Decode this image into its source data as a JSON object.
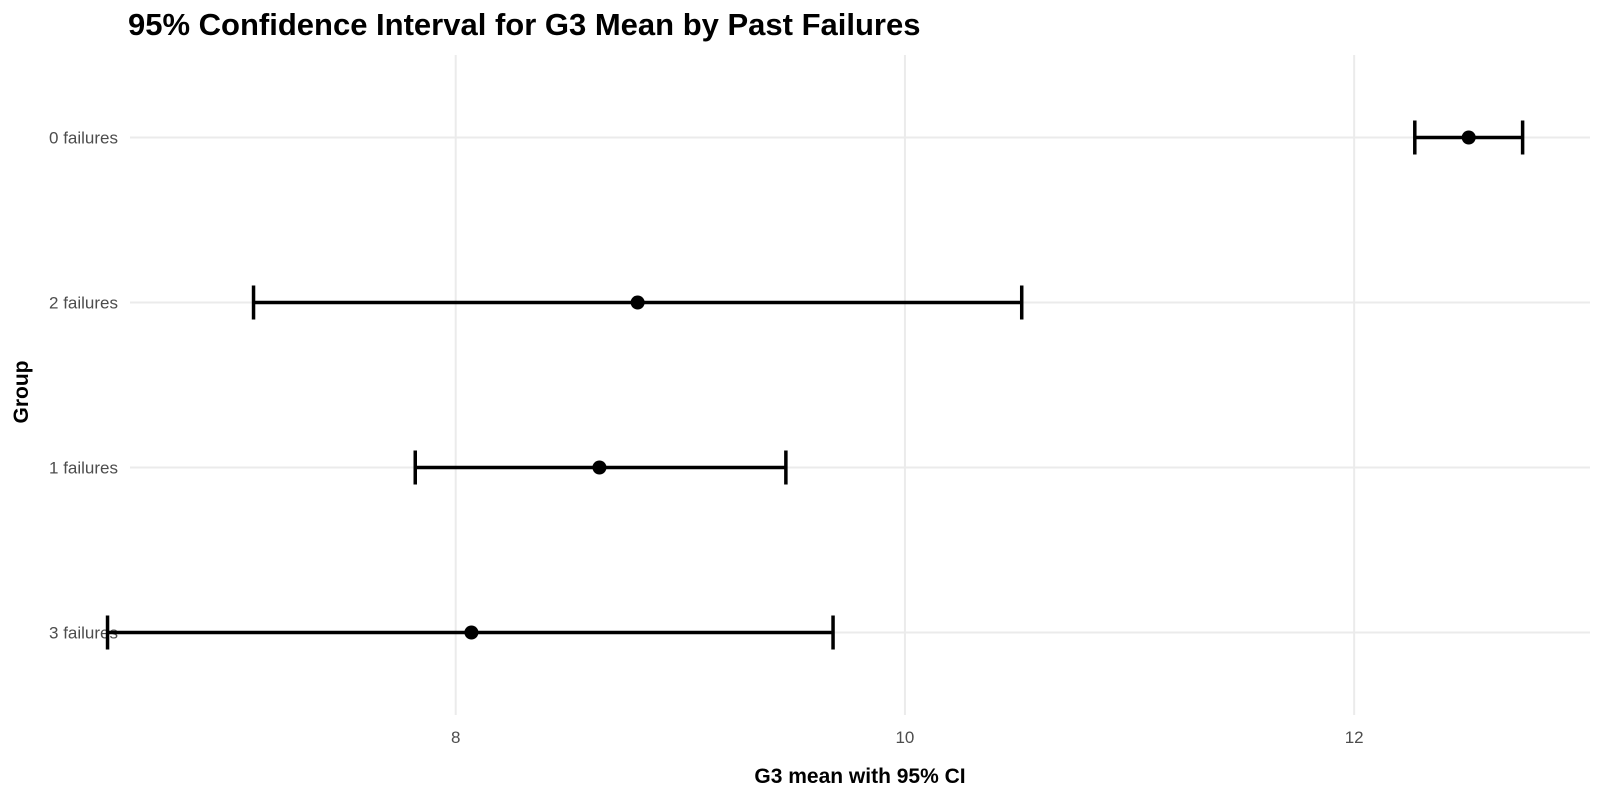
{
  "chart_data": {
    "type": "errorbar",
    "title": "95% Confidence Interval for G3 Mean by Past Failures",
    "xlabel": "G3 mean with 95% CI",
    "ylabel": "Group",
    "xlim": [
      6.55,
      13.05
    ],
    "x_ticks": [
      8,
      10,
      12
    ],
    "x_tick_labels": [
      "8",
      "10",
      "12"
    ],
    "categories": [
      "0 failures",
      "2 failures",
      "1 failures",
      "3 failures"
    ],
    "series": [
      {
        "mean": [
          12.51,
          8.81,
          8.64,
          8.07
        ],
        "lower": [
          12.27,
          7.1,
          7.82,
          6.45
        ],
        "upper": [
          12.75,
          10.52,
          9.47,
          9.68
        ]
      }
    ],
    "grid": true,
    "colors": {
      "point": "#000000",
      "errorbar": "#000000",
      "grid": "#ebebeb"
    }
  }
}
